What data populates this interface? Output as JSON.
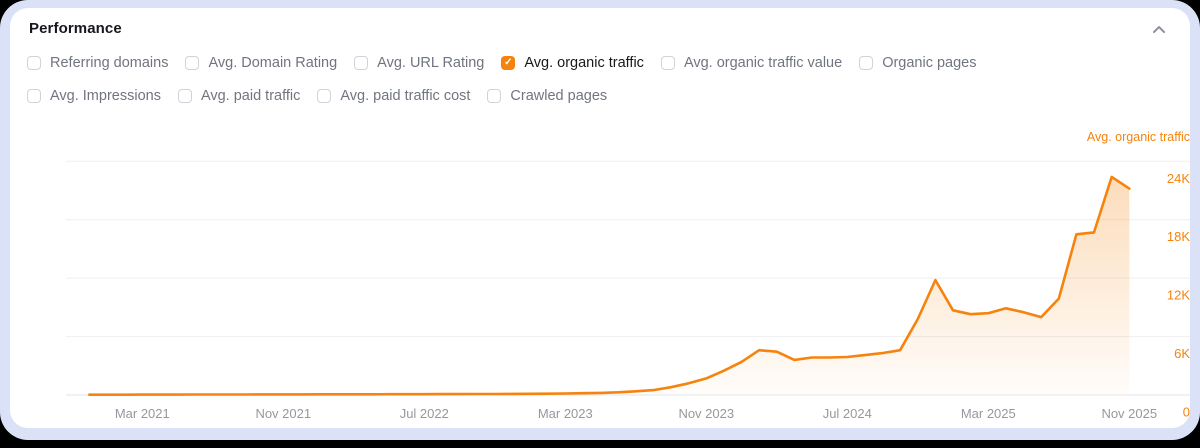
{
  "frame_colors": {
    "backdrop": "#000000",
    "border": "#dbe2f8",
    "card": "#ffffff"
  },
  "header": {
    "title": "Performance",
    "collapse_icon": "chevron-up"
  },
  "metrics": {
    "accent_color": "#f5830d",
    "rows": [
      [
        {
          "label": "Referring domains",
          "checked": false
        },
        {
          "label": "Avg. Domain Rating",
          "checked": false
        },
        {
          "label": "Avg. URL Rating",
          "checked": false
        },
        {
          "label": "Avg. organic traffic",
          "checked": true
        },
        {
          "label": "Avg. organic traffic value",
          "checked": false
        },
        {
          "label": "Organic pages",
          "checked": false
        }
      ],
      [
        {
          "label": "Avg. Impressions",
          "checked": false
        },
        {
          "label": "Avg. paid traffic",
          "checked": false
        },
        {
          "label": "Avg. paid traffic cost",
          "checked": false
        },
        {
          "label": "Crawled pages",
          "checked": false
        }
      ]
    ]
  },
  "chart_data": {
    "type": "area",
    "title": "Avg. organic traffic",
    "line_color": "#f5830d",
    "grid_color": "#efeff2",
    "baseline_color": "#e6e6ea",
    "grid": "horizontal",
    "legend_position": "top-right",
    "ylim": [
      0,
      24000
    ],
    "y_ticks": [
      {
        "label": "0",
        "value": 0
      },
      {
        "label": "6K",
        "value": 6000
      },
      {
        "label": "12K",
        "value": 12000
      },
      {
        "label": "18K",
        "value": 18000
      },
      {
        "label": "24K",
        "value": 24000
      }
    ],
    "x_tick_labels": [
      "Mar 2021",
      "Nov 2021",
      "Jul 2022",
      "Mar 2023",
      "Nov 2023",
      "Jul 2024",
      "Mar 2025",
      "Nov 2025"
    ],
    "series": [
      {
        "name": "Avg. organic traffic",
        "x": [
          "Dec 2020",
          "Jan 2021",
          "Feb 2021",
          "Mar 2021",
          "Apr 2021",
          "May 2021",
          "Jun 2021",
          "Jul 2021",
          "Aug 2021",
          "Sep 2021",
          "Oct 2021",
          "Nov 2021",
          "Dec 2021",
          "Jan 2022",
          "Feb 2022",
          "Mar 2022",
          "Apr 2022",
          "May 2022",
          "Jun 2022",
          "Jul 2022",
          "Aug 2022",
          "Sep 2022",
          "Oct 2022",
          "Nov 2022",
          "Dec 2022",
          "Jan 2023",
          "Feb 2023",
          "Mar 2023",
          "Apr 2023",
          "May 2023",
          "Jun 2023",
          "Jul 2023",
          "Aug 2023",
          "Sep 2023",
          "Oct 2023",
          "Nov 2023",
          "Dec 2023",
          "Jan 2024",
          "Feb 2024",
          "Mar 2024",
          "Apr 2024",
          "May 2024",
          "Jun 2024",
          "Jul 2024",
          "Aug 2024",
          "Sep 2024",
          "Oct 2024",
          "Nov 2024",
          "Dec 2024",
          "Jan 2025",
          "Feb 2025",
          "Mar 2025",
          "Apr 2025",
          "May 2025",
          "Jun 2025",
          "Jul 2025",
          "Aug 2025",
          "Sep 2025",
          "Oct 2025",
          "Nov 2025"
        ],
        "values": [
          30,
          30,
          35,
          40,
          45,
          45,
          50,
          50,
          55,
          55,
          60,
          60,
          65,
          70,
          70,
          75,
          75,
          80,
          80,
          85,
          90,
          95,
          100,
          105,
          110,
          120,
          130,
          150,
          180,
          220,
          280,
          380,
          500,
          800,
          1200,
          1700,
          2500,
          3400,
          4600,
          4450,
          3600,
          3850,
          3850,
          3900,
          4100,
          4300,
          4600,
          7800,
          11800,
          8700,
          8300,
          8400,
          8900,
          8500,
          8000,
          9900,
          16500,
          16700,
          22400,
          21200
        ]
      }
    ]
  }
}
